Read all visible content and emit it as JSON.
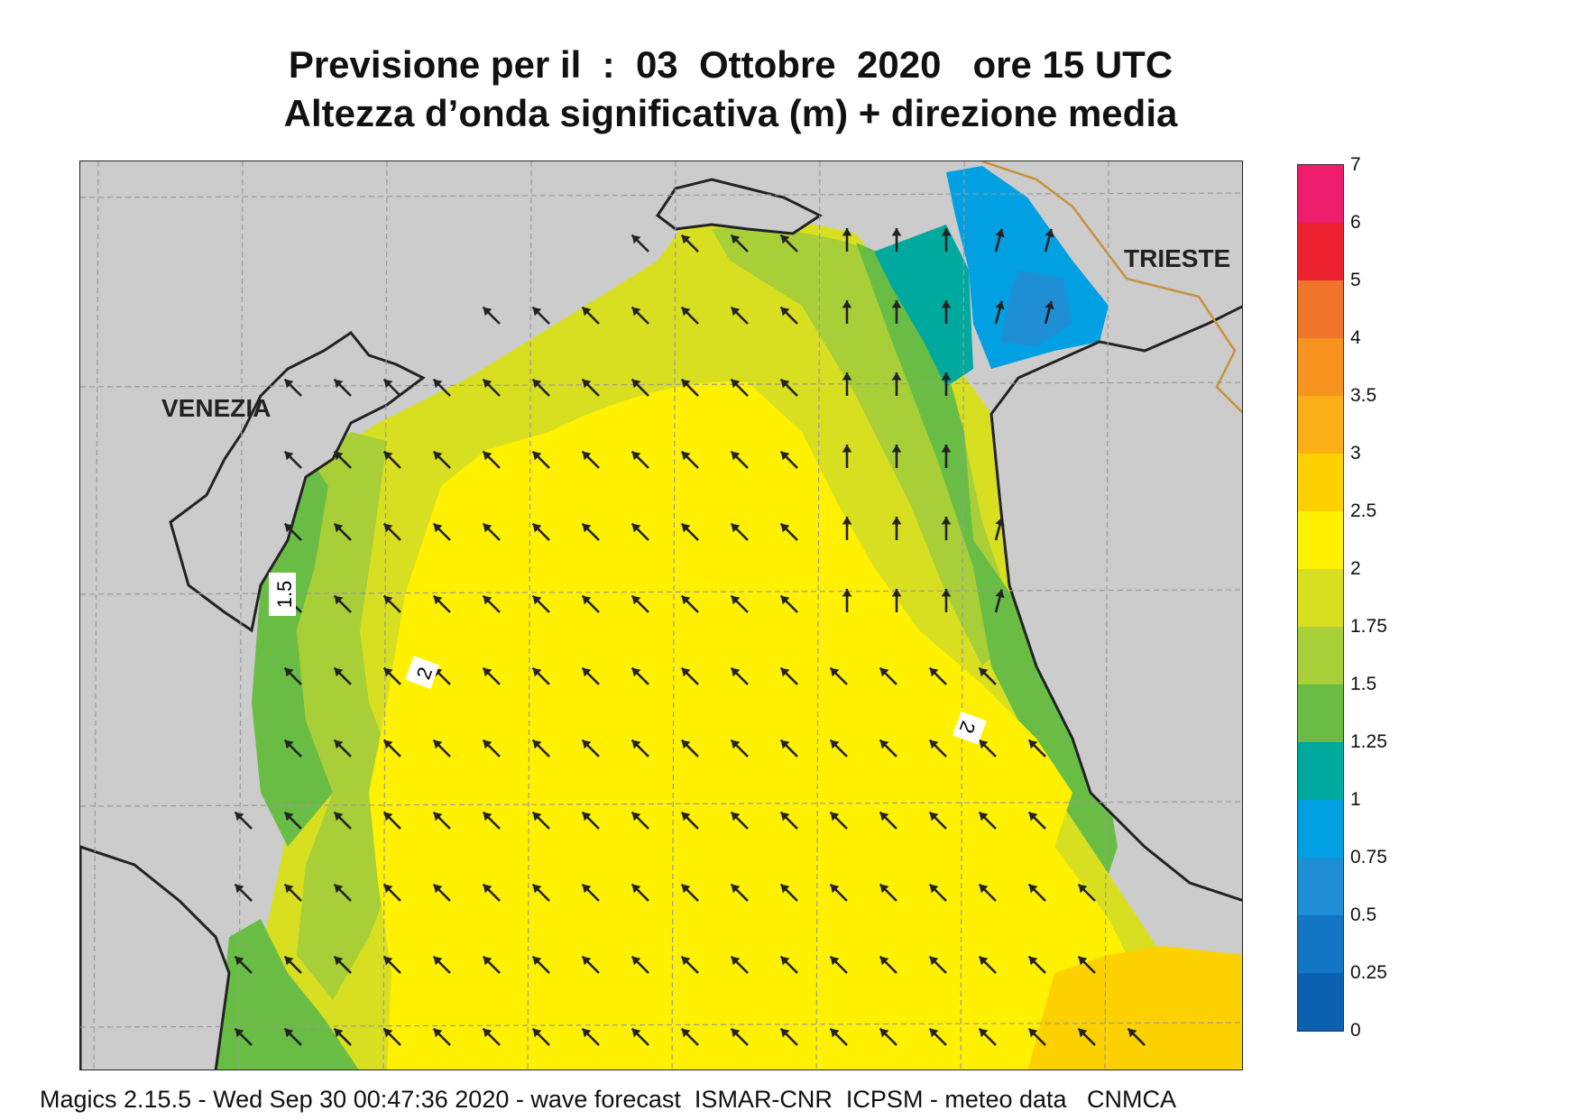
{
  "title": {
    "line1": "Previsione per il  :  03  Ottobre  2020   ore 15 UTC",
    "line2": "Altezza d’onda significativa (m) + direzione media"
  },
  "map": {
    "cities": {
      "venezia": "VENEZIA",
      "trieste": "TRIESTE"
    },
    "contour_labels": [
      "1.5",
      "2",
      "2"
    ],
    "colors": {
      "land": "#cccccc",
      "coast": "#222222",
      "border": "#c8913a",
      "grid": "#9a9a9a",
      "arrow": "#222222"
    },
    "arrow_direction": "toward north-west"
  },
  "legend": {
    "unit": "m",
    "ticks": [
      "7",
      "6",
      "5",
      "4",
      "3.5",
      "3",
      "2.5",
      "2",
      "1.75",
      "1.5",
      "1.25",
      "1",
      "0.75",
      "0.5",
      "0.25",
      "0"
    ],
    "bins": [
      {
        "from": 6,
        "to": 7,
        "color": "#ee1c6c"
      },
      {
        "from": 5,
        "to": 6,
        "color": "#ed2230"
      },
      {
        "from": 4,
        "to": 5,
        "color": "#f0742a"
      },
      {
        "from": 3.5,
        "to": 4,
        "color": "#f7931e"
      },
      {
        "from": 3,
        "to": 3.5,
        "color": "#fbaf17"
      },
      {
        "from": 2.5,
        "to": 3,
        "color": "#fdd100"
      },
      {
        "from": 2,
        "to": 2.5,
        "color": "#fff100"
      },
      {
        "from": 1.75,
        "to": 2,
        "color": "#d8df20"
      },
      {
        "from": 1.5,
        "to": 1.75,
        "color": "#a8cf38"
      },
      {
        "from": 1.25,
        "to": 1.5,
        "color": "#69bd45"
      },
      {
        "from": 1,
        "to": 1.25,
        "color": "#00a99d"
      },
      {
        "from": 0.75,
        "to": 1,
        "color": "#00a0e3"
      },
      {
        "from": 0.5,
        "to": 0.75,
        "color": "#1e8fd5"
      },
      {
        "from": 0.25,
        "to": 0.5,
        "color": "#1276c2"
      },
      {
        "from": 0,
        "to": 0.25,
        "color": "#0b61b0"
      }
    ]
  },
  "footer": "Magics 2.15.5 - Wed Sep 30 00:47:36 2020 - wave forecast  ISMAR-CNR  ICPSM - meteo data   CNMCA"
}
